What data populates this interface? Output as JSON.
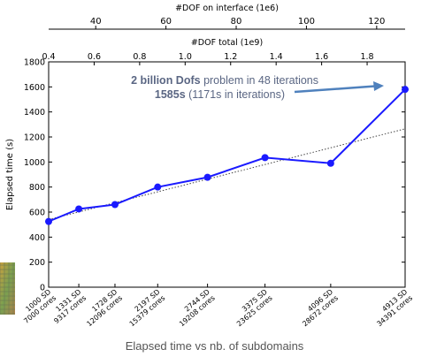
{
  "chart_data": {
    "type": "line",
    "ylabel": "Elapsed time (s)",
    "ylim": [
      0,
      1800
    ],
    "yticks": [
      0,
      200,
      400,
      600,
      800,
      1000,
      1200,
      1400,
      1600,
      1800
    ],
    "x_categories": [
      [
        "1000 SD",
        "7000 cores"
      ],
      [
        "1331 SD",
        "9317 cores"
      ],
      [
        "1728 SD",
        "12096 cores"
      ],
      [
        "2197 SD",
        "15379 cores"
      ],
      [
        "2744 SD",
        "19208 cores"
      ],
      [
        "3375 SD",
        "23625 cores"
      ],
      [
        "4096 SD",
        "28672 cores"
      ],
      [
        "4913 SD",
        "34391 cores"
      ]
    ],
    "x_subdomains": [
      1000,
      1331,
      1728,
      2197,
      2744,
      3375,
      4096,
      4913
    ],
    "xlim": [
      1000,
      4913
    ],
    "series": [
      {
        "values": [
          525,
          625,
          660,
          800,
          878,
          1035,
          990,
          1580
        ],
        "color": "#1a1aff"
      }
    ],
    "trend": {
      "values": [
        540,
        1265
      ],
      "color": "#444444",
      "style": "dotted"
    },
    "top_axis_1": {
      "label": "#DOF total (1e9)",
      "range": [
        0.4,
        1.967
      ],
      "ticks": [
        "0.4",
        "0.6",
        "0.8",
        "1.0",
        "1.2",
        "1.4",
        "1.6",
        "1.8"
      ],
      "tick_values": [
        0.4,
        0.6,
        0.8,
        1.0,
        1.2,
        1.4,
        1.6,
        1.8
      ]
    },
    "top_axis_2": {
      "label": "#DOF on interface (1e6)",
      "range": [
        26.6,
        128.1
      ],
      "ticks": [
        "40",
        "60",
        "80",
        "100",
        "120"
      ],
      "tick_values": [
        40,
        60,
        80,
        100,
        120
      ]
    },
    "annotation": {
      "line1_bold": "2 billion Dofs",
      "line1_rest": " problem in 48 iterations",
      "line2_bold": "1585s",
      "line2_rest": " (1171s in iterations)",
      "color": "#5a6683",
      "arrow_color": "#4f81bd"
    }
  },
  "caption": "Elapsed time vs nb. of subdomains"
}
